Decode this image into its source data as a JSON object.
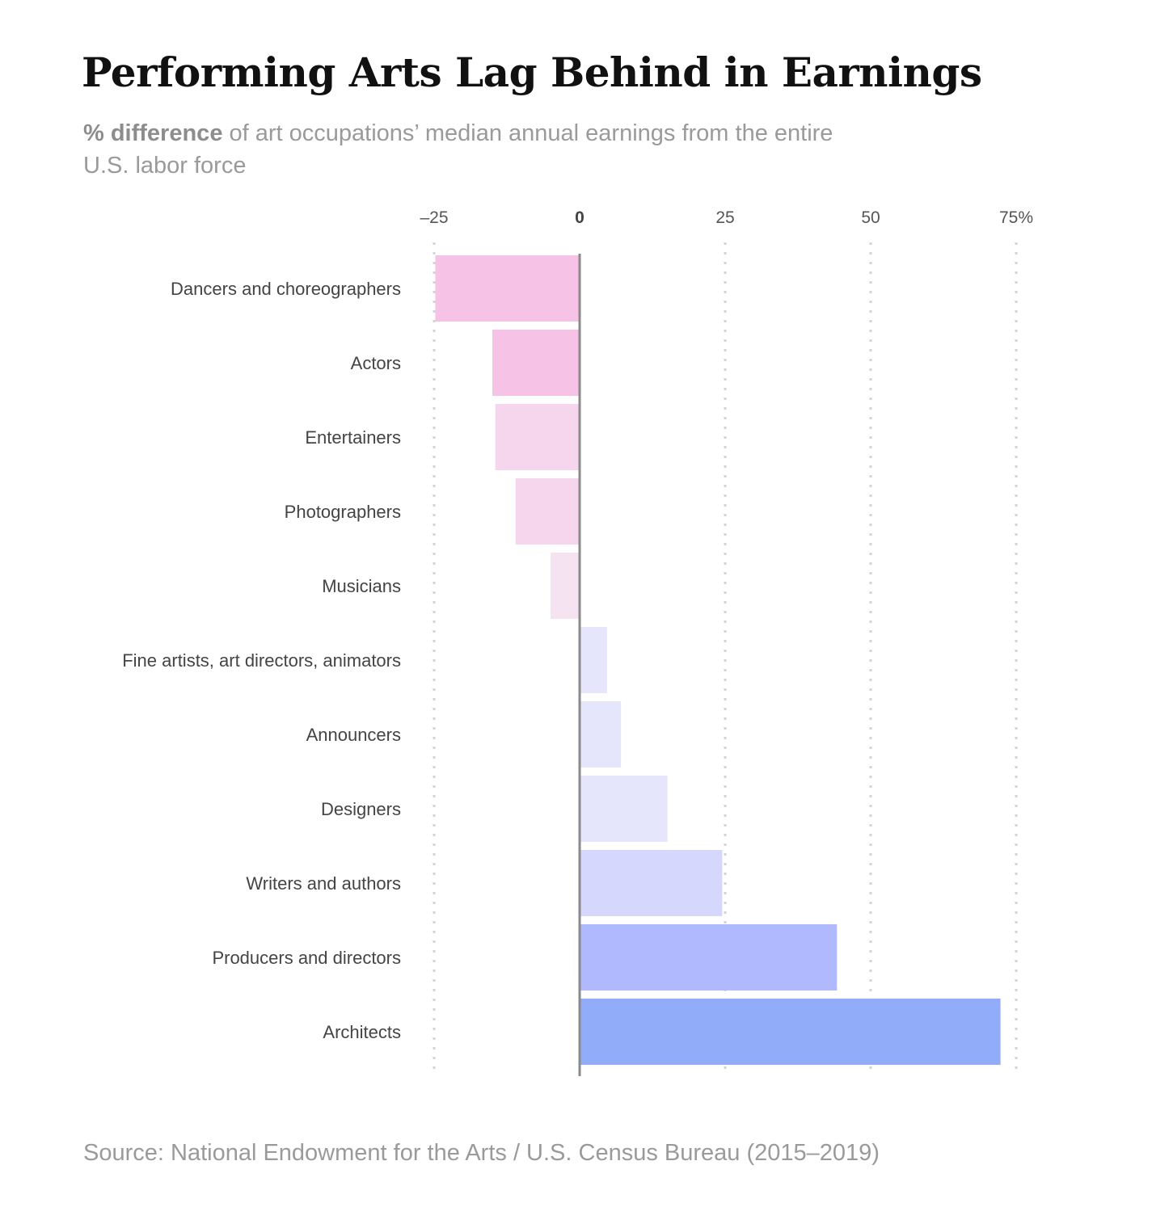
{
  "title": "Performing Arts Lag Behind in Earnings",
  "subtitle": {
    "lead": "% difference",
    "rest": " of art occupations’ median annual earnings from the entire U.S. labor force"
  },
  "source": "Source: National Endowment for the Arts / U.S. Census Bureau (2015–2019)",
  "chart_data": {
    "type": "bar",
    "orientation": "horizontal",
    "title": "Performing Arts Lag Behind in Earnings",
    "xlabel": "",
    "ylabel": "",
    "xlim": [
      -25,
      75
    ],
    "x_ticks": [
      -25,
      0,
      25,
      50,
      75
    ],
    "x_tick_labels": [
      "–25",
      "0",
      "25",
      "50",
      "75%"
    ],
    "grid": "vertical dotted lines at ticks",
    "legend": "none",
    "categories": [
      "Dancers and choreographers",
      "Actors",
      "Entertainers",
      "Photographers",
      "Musicians",
      "Fine artists, art directors, animators",
      "Announcers",
      "Designers",
      "Writers and authors",
      "Producers and directors",
      "Architects"
    ],
    "values": [
      -24.8,
      -15,
      -14.5,
      -11,
      -5,
      4.7,
      7.1,
      15.1,
      24.5,
      44.2,
      72.3
    ],
    "colors": [
      "#f6c3e6",
      "#f6c3e6",
      "#f5d6ed",
      "#f5d6ed",
      "#f6e3f1",
      "#e5e6fc",
      "#e5e6fc",
      "#e5e6fc",
      "#d6d7fd",
      "#b0b9fd",
      "#91acf9"
    ]
  }
}
